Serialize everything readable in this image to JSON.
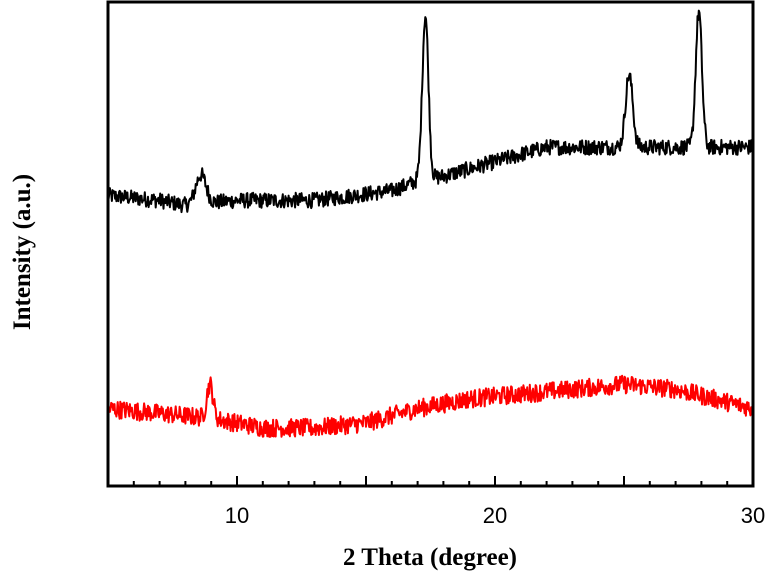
{
  "chart_data": {
    "type": "line",
    "title": "",
    "xlabel": "2 Theta (degree)",
    "ylabel": "Intensity (a.u.)",
    "xlim": [
      5,
      30
    ],
    "ylim": [
      0,
      100
    ],
    "x_ticks": [
      10,
      20,
      30
    ],
    "x_tick_labels": [
      "10",
      "20",
      "30"
    ],
    "y_ticks_labeled": false,
    "grid": false,
    "legend": "none",
    "series": [
      {
        "color": "#000000",
        "baseline": [
          [
            5,
            60
          ],
          [
            7,
            59
          ],
          [
            8,
            58
          ],
          [
            10,
            59
          ],
          [
            13,
            59
          ],
          [
            16,
            61
          ],
          [
            17,
            63
          ],
          [
            18,
            64
          ],
          [
            20,
            67
          ],
          [
            22,
            70
          ],
          [
            24,
            70
          ],
          [
            26,
            70
          ],
          [
            28,
            70
          ],
          [
            30,
            70
          ]
        ],
        "peaks": [
          {
            "x": 8.6,
            "height": 6,
            "width": 0.2
          },
          {
            "x": 17.3,
            "height": 34,
            "width": 0.12
          },
          {
            "x": 25.2,
            "height": 15,
            "width": 0.14
          },
          {
            "x": 27.9,
            "height": 28,
            "width": 0.12
          }
        ],
        "noise": 1.6
      },
      {
        "color": "#ff0000",
        "baseline": [
          [
            5,
            16
          ],
          [
            7,
            15
          ],
          [
            9,
            14
          ],
          [
            11,
            12
          ],
          [
            13,
            12
          ],
          [
            15,
            13
          ],
          [
            17,
            16
          ],
          [
            19,
            18
          ],
          [
            21,
            19
          ],
          [
            23,
            20
          ],
          [
            25,
            21
          ],
          [
            27,
            20
          ],
          [
            28.5,
            18
          ],
          [
            30,
            16
          ]
        ],
        "peaks": [
          {
            "x": 8.95,
            "height": 7,
            "width": 0.12
          }
        ],
        "noise": 1.9
      }
    ]
  }
}
